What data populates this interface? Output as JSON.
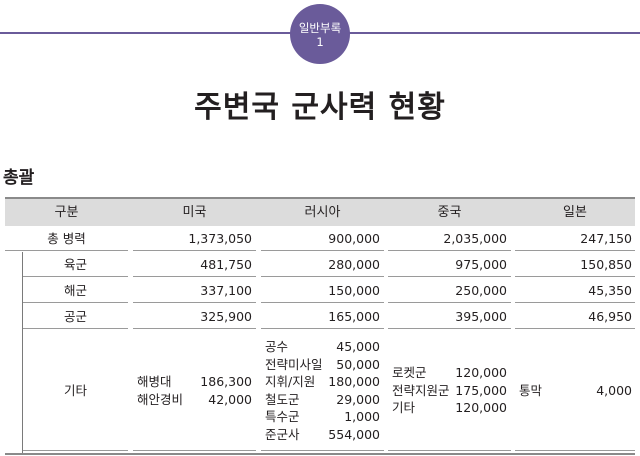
{
  "badge": {
    "line1": "일반부록",
    "line2": "1"
  },
  "title": "주변국 군사력 현황",
  "section_title": "총괄",
  "table": {
    "headers": [
      "구분",
      "미국",
      "러시아",
      "중국",
      "일본"
    ],
    "rows": [
      {
        "label": "총 병력",
        "values": [
          "1,373,050",
          "900,000",
          "2,035,000",
          "247,150"
        ]
      },
      {
        "label": "육군",
        "values": [
          "481,750",
          "280,000",
          "975,000",
          "150,850"
        ]
      },
      {
        "label": "해군",
        "values": [
          "337,100",
          "150,000",
          "250,000",
          "45,350"
        ]
      },
      {
        "label": "공군",
        "values": [
          "325,900",
          "165,000",
          "395,000",
          "46,950"
        ]
      }
    ],
    "etc": {
      "label": "기타",
      "usa": [
        {
          "name": "해병대",
          "value": "186,300"
        },
        {
          "name": "해안경비",
          "value": "42,000"
        }
      ],
      "russia": [
        {
          "name": "공수",
          "value": "45,000"
        },
        {
          "name": "전략미사일",
          "value": "50,000"
        },
        {
          "name": "지휘/지원",
          "value": "180,000"
        },
        {
          "name": "철도군",
          "value": "29,000"
        },
        {
          "name": "특수군",
          "value": "1,000"
        },
        {
          "name": "준군사",
          "value": "554,000"
        }
      ],
      "china": [
        {
          "name": "로켓군",
          "value": "120,000"
        },
        {
          "name": "전략지원군",
          "value": "175,000"
        },
        {
          "name": "기타",
          "value": "120,000"
        }
      ],
      "japan": [
        {
          "name": "통막",
          "value": "4,000"
        }
      ]
    }
  }
}
